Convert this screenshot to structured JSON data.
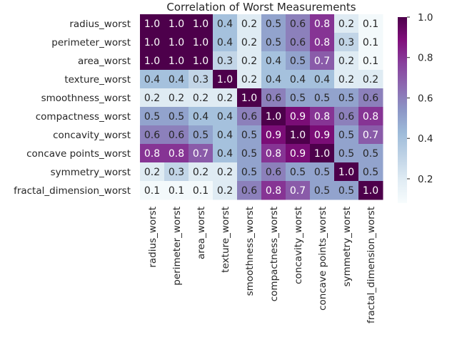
{
  "chart_data": {
    "type": "heatmap",
    "title": "Correlation of Worst Measurements",
    "x_labels": [
      "radius_worst",
      "perimeter_worst",
      "area_worst",
      "texture_worst",
      "smoothness_worst",
      "compactness_worst",
      "concavity_worst",
      "concave points_worst",
      "symmetry_worst",
      "fractal_dimension_worst"
    ],
    "y_labels": [
      "radius_worst",
      "perimeter_worst",
      "area_worst",
      "texture_worst",
      "smoothness_worst",
      "compactness_worst",
      "concavity_worst",
      "concave points_worst",
      "symmetry_worst",
      "fractal_dimension_worst"
    ],
    "values": [
      [
        1.0,
        1.0,
        1.0,
        0.4,
        0.2,
        0.5,
        0.6,
        0.8,
        0.2,
        0.1
      ],
      [
        1.0,
        1.0,
        1.0,
        0.4,
        0.2,
        0.5,
        0.6,
        0.8,
        0.3,
        0.1
      ],
      [
        1.0,
        1.0,
        1.0,
        0.3,
        0.2,
        0.4,
        0.5,
        0.7,
        0.2,
        0.1
      ],
      [
        0.4,
        0.4,
        0.3,
        1.0,
        0.2,
        0.4,
        0.4,
        0.4,
        0.2,
        0.2
      ],
      [
        0.2,
        0.2,
        0.2,
        0.2,
        1.0,
        0.6,
        0.5,
        0.5,
        0.5,
        0.6
      ],
      [
        0.5,
        0.5,
        0.4,
        0.4,
        0.6,
        1.0,
        0.9,
        0.8,
        0.6,
        0.8
      ],
      [
        0.6,
        0.6,
        0.5,
        0.4,
        0.5,
        0.9,
        1.0,
        0.9,
        0.5,
        0.7
      ],
      [
        0.8,
        0.8,
        0.7,
        0.4,
        0.5,
        0.8,
        0.9,
        1.0,
        0.5,
        0.5
      ],
      [
        0.2,
        0.3,
        0.2,
        0.2,
        0.5,
        0.6,
        0.5,
        0.5,
        1.0,
        0.5
      ],
      [
        0.1,
        0.1,
        0.1,
        0.2,
        0.6,
        0.8,
        0.7,
        0.5,
        0.5,
        1.0
      ]
    ],
    "colormap": "BuPu",
    "color_stops": [
      "#f7fcfd",
      "#e0ecf4",
      "#bfd3e6",
      "#9ebcda",
      "#8c96c6",
      "#8c6bb1",
      "#88419d",
      "#810f7c",
      "#4d004b"
    ],
    "vmin": 0.08,
    "vmax": 1.0,
    "colorbar": {
      "ticks": [
        0.2,
        0.4,
        0.6,
        0.8,
        1.0
      ],
      "tick_labels": [
        "0.2",
        "0.4",
        "0.6",
        "0.8",
        "1.0"
      ]
    },
    "annotation_format": "1 decimal",
    "text_colors": {
      "dark": "#262626",
      "light": "#ffffff"
    },
    "grid": false
  }
}
